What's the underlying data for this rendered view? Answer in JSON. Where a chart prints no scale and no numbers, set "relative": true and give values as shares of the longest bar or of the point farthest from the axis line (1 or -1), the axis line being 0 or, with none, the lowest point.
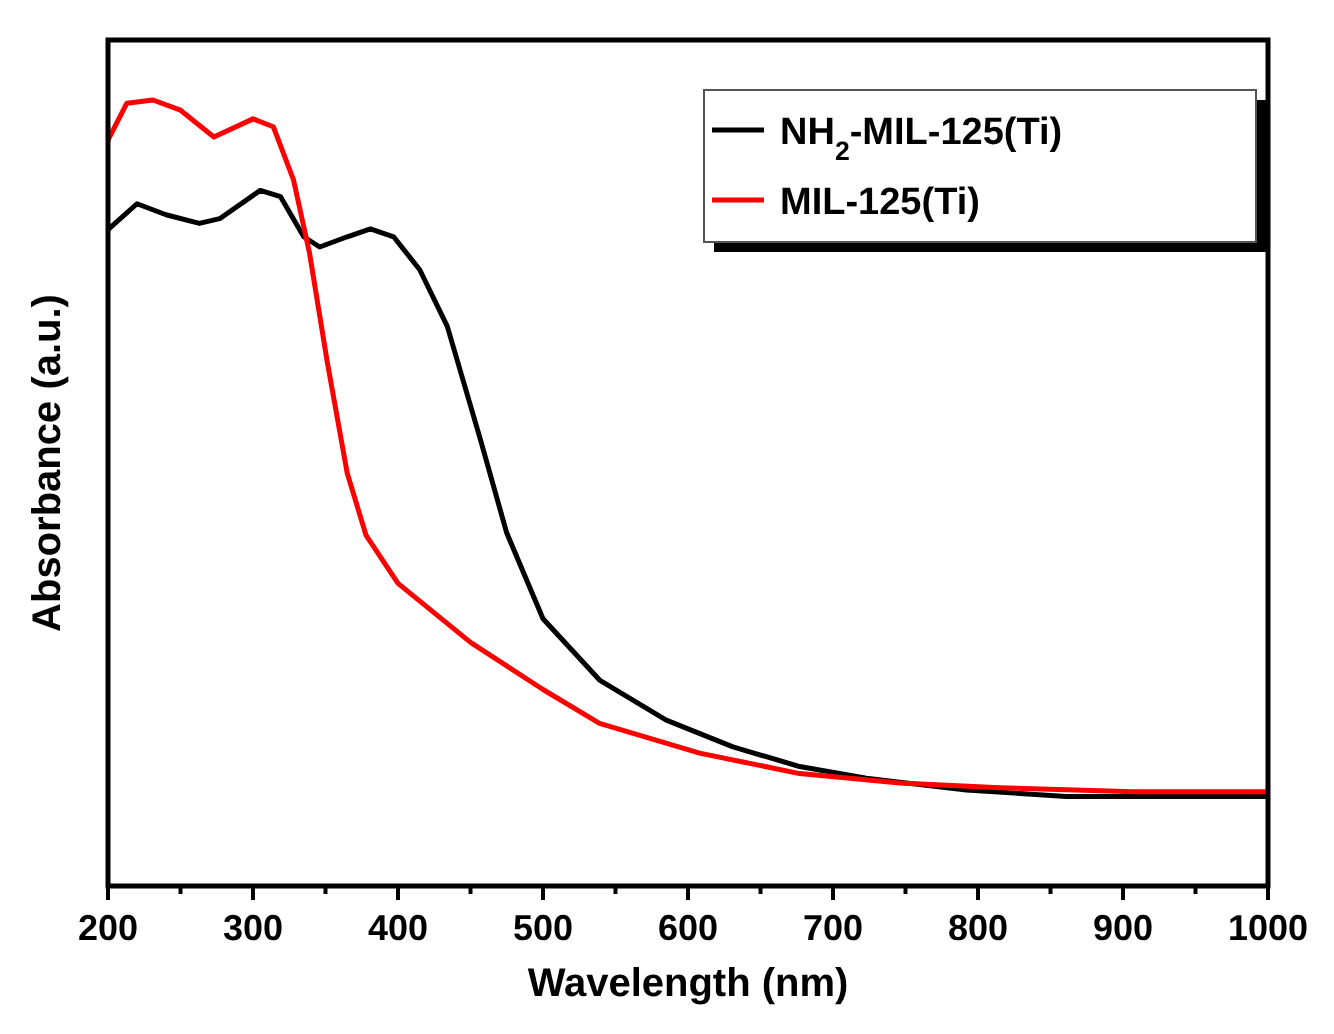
{
  "chart_data": {
    "type": "line",
    "xlabel": "Wavelength (nm)",
    "ylabel": "Absorbance (a.u.)",
    "relative": true,
    "xlim": [
      200,
      1000
    ],
    "xticks": [
      200,
      {
        "value": 250,
        "label": null
      },
      300,
      {
        "value": 350,
        "label": null
      },
      400,
      {
        "value": 450,
        "label": null
      },
      500,
      {
        "value": 550,
        "label": null
      },
      600,
      {
        "value": 650,
        "label": null
      },
      700,
      {
        "value": 750,
        "label": null
      },
      800,
      {
        "value": 850,
        "label": null
      },
      900,
      {
        "value": 950,
        "label": null
      },
      1000
    ],
    "legend": "top right",
    "grid": false,
    "line_style": "solid",
    "series": [
      {
        "name": "NH$_{2}$-MIL-125(Ti)",
        "color": "#000000",
        "x": [
          200,
          220,
          240,
          263,
          277,
          305,
          319,
          335,
          346,
          365,
          381,
          397,
          415,
          434,
          457,
          475,
          500,
          539,
          585,
          631,
          677,
          723,
          792,
          861,
          1000
        ],
        "values": [
          0.835,
          0.868,
          0.854,
          0.843,
          0.849,
          0.885,
          0.877,
          0.826,
          0.813,
          0.826,
          0.836,
          0.826,
          0.784,
          0.712,
          0.567,
          0.449,
          0.34,
          0.262,
          0.211,
          0.177,
          0.152,
          0.137,
          0.122,
          0.114,
          0.114
        ]
      },
      {
        "name": "MIL-125(Ti)",
        "color": "#ff0000",
        "x": [
          200,
          213,
          231,
          250,
          273,
          300,
          314,
          328,
          339,
          351,
          365,
          378,
          400,
          450,
          500,
          539,
          608,
          677,
          746,
          815,
          907,
          1000
        ],
        "values": [
          0.949,
          0.996,
          1.0,
          0.987,
          0.953,
          0.976,
          0.966,
          0.898,
          0.805,
          0.669,
          0.525,
          0.446,
          0.385,
          0.31,
          0.25,
          0.207,
          0.169,
          0.143,
          0.131,
          0.125,
          0.12,
          0.12
        ]
      }
    ]
  }
}
